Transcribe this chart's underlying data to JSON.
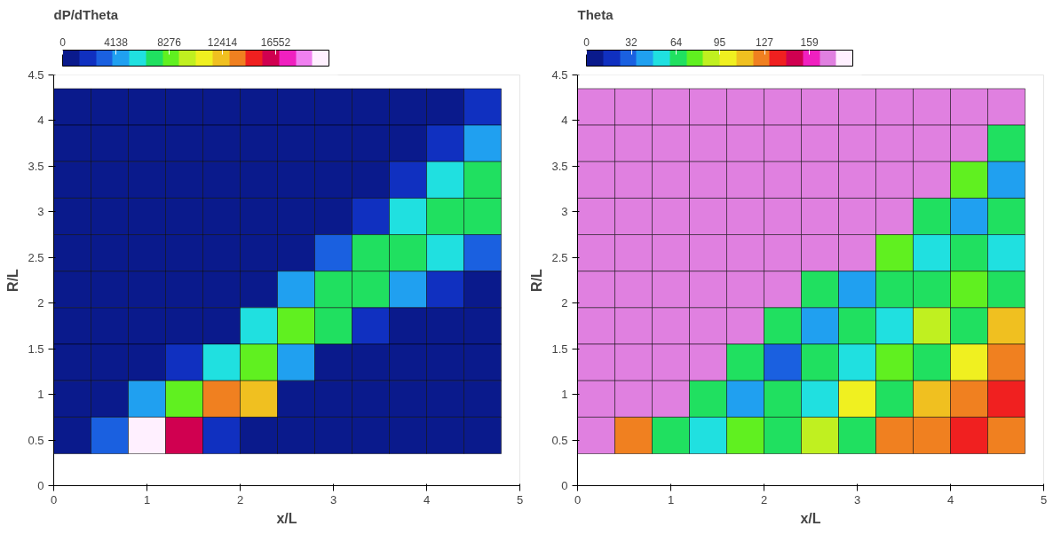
{
  "chart_data": [
    {
      "type": "heatmap",
      "title": "dP/dTheta",
      "xlabel": "x/L",
      "ylabel": "R/L",
      "grid": false,
      "x": [
        0.2,
        0.6,
        1.0,
        1.4,
        1.8,
        2.2,
        2.6,
        3.0,
        3.4,
        3.8,
        4.2,
        4.6
      ],
      "y": [
        4.15,
        3.75,
        3.35,
        2.95,
        2.55,
        2.15,
        1.75,
        1.35,
        0.95,
        0.55
      ],
      "cells": [
        [
          500,
          500,
          500,
          500,
          500,
          500,
          500,
          500,
          500,
          500,
          500,
          1500
        ],
        [
          500,
          500,
          500,
          500,
          500,
          500,
          500,
          500,
          500,
          500,
          1500,
          5000
        ],
        [
          500,
          500,
          500,
          500,
          500,
          500,
          500,
          500,
          500,
          1500,
          6000,
          7000
        ],
        [
          500,
          500,
          500,
          500,
          500,
          500,
          500,
          500,
          2500,
          6000,
          7000,
          6500
        ],
        [
          500,
          500,
          500,
          500,
          500,
          500,
          500,
          3000,
          6500,
          7000,
          6000,
          3000
        ],
        [
          500,
          500,
          500,
          500,
          500,
          500,
          5000,
          7500,
          7000,
          4000,
          1500,
          500
        ],
        [
          500,
          500,
          500,
          500,
          500,
          6000,
          8000,
          6500,
          2000,
          500,
          500,
          500
        ],
        [
          500,
          500,
          500,
          2500,
          6000,
          8000,
          4000,
          1000,
          500,
          500,
          500,
          500
        ],
        [
          500,
          500,
          4000,
          8000,
          14000,
          12000,
          1000,
          500,
          500,
          500,
          500,
          500
        ],
        [
          500,
          3000,
          20000,
          16000,
          2000,
          500,
          500,
          500,
          500,
          500,
          500,
          500
        ]
      ],
      "clim": [
        0,
        20690
      ],
      "cticks": [
        0,
        4138,
        8276,
        12414,
        16552
      ],
      "colors": [
        "#0a1a8c",
        "#1030c0",
        "#1a60e0",
        "#20a0f0",
        "#20e0e0",
        "#20e060",
        "#60f020",
        "#c0f020",
        "#f0f020",
        "#f0c020",
        "#f08020",
        "#f02020",
        "#d00050",
        "#f020c0",
        "#f080f0",
        "#fff0ff"
      ],
      "xlim": [
        0,
        5
      ],
      "ylim": [
        0,
        4.5
      ],
      "xticks": [
        0,
        1,
        2,
        3,
        4,
        5
      ],
      "yticks": [
        0,
        0.5,
        1,
        1.5,
        2,
        2.5,
        3,
        3.5,
        4,
        4.5
      ]
    },
    {
      "type": "heatmap",
      "title": "Theta",
      "xlabel": "x/L",
      "ylabel": "R/L",
      "grid": false,
      "x": [
        0.2,
        0.6,
        1.0,
        1.4,
        1.8,
        2.2,
        2.6,
        3.0,
        3.4,
        3.8,
        4.2,
        4.6
      ],
      "y": [
        4.15,
        3.75,
        3.35,
        2.95,
        2.55,
        2.15,
        1.75,
        1.35,
        0.95,
        0.55
      ],
      "cells": [
        [
          170,
          170,
          170,
          170,
          170,
          170,
          170,
          170,
          170,
          170,
          170,
          170
        ],
        [
          170,
          170,
          170,
          170,
          170,
          170,
          170,
          170,
          170,
          170,
          170,
          60
        ],
        [
          170,
          170,
          170,
          170,
          170,
          170,
          170,
          170,
          170,
          170,
          80,
          40
        ],
        [
          170,
          170,
          170,
          170,
          170,
          170,
          170,
          170,
          170,
          60,
          40,
          70
        ],
        [
          170,
          170,
          170,
          170,
          170,
          170,
          170,
          170,
          80,
          50,
          60,
          50
        ],
        [
          170,
          170,
          170,
          170,
          170,
          170,
          60,
          40,
          70,
          60,
          80,
          60
        ],
        [
          170,
          170,
          170,
          170,
          170,
          70,
          40,
          60,
          50,
          90,
          60,
          110
        ],
        [
          170,
          170,
          170,
          170,
          60,
          30,
          70,
          50,
          80,
          60,
          100,
          130
        ],
        [
          170,
          170,
          170,
          60,
          40,
          70,
          50,
          100,
          70,
          110,
          130,
          140
        ],
        [
          170,
          120,
          60,
          50,
          80,
          60,
          90,
          70,
          120,
          130,
          140,
          130
        ]
      ],
      "clim": [
        0,
        190
      ],
      "cticks": [
        0,
        32,
        64,
        95,
        127,
        159
      ],
      "colors": [
        "#0a1a8c",
        "#1030c0",
        "#1a60e0",
        "#20a0f0",
        "#20e0e0",
        "#20e060",
        "#60f020",
        "#c0f020",
        "#f0f020",
        "#f0c020",
        "#f08020",
        "#f02020",
        "#d00050",
        "#f020c0",
        "#e080e0",
        "#fff0ff"
      ],
      "xlim": [
        0,
        5
      ],
      "ylim": [
        0,
        4.5
      ],
      "xticks": [
        0,
        1,
        2,
        3,
        4,
        5
      ],
      "yticks": [
        0,
        0.5,
        1,
        1.5,
        2,
        2.5,
        3,
        3.5,
        4,
        4.5
      ]
    }
  ]
}
